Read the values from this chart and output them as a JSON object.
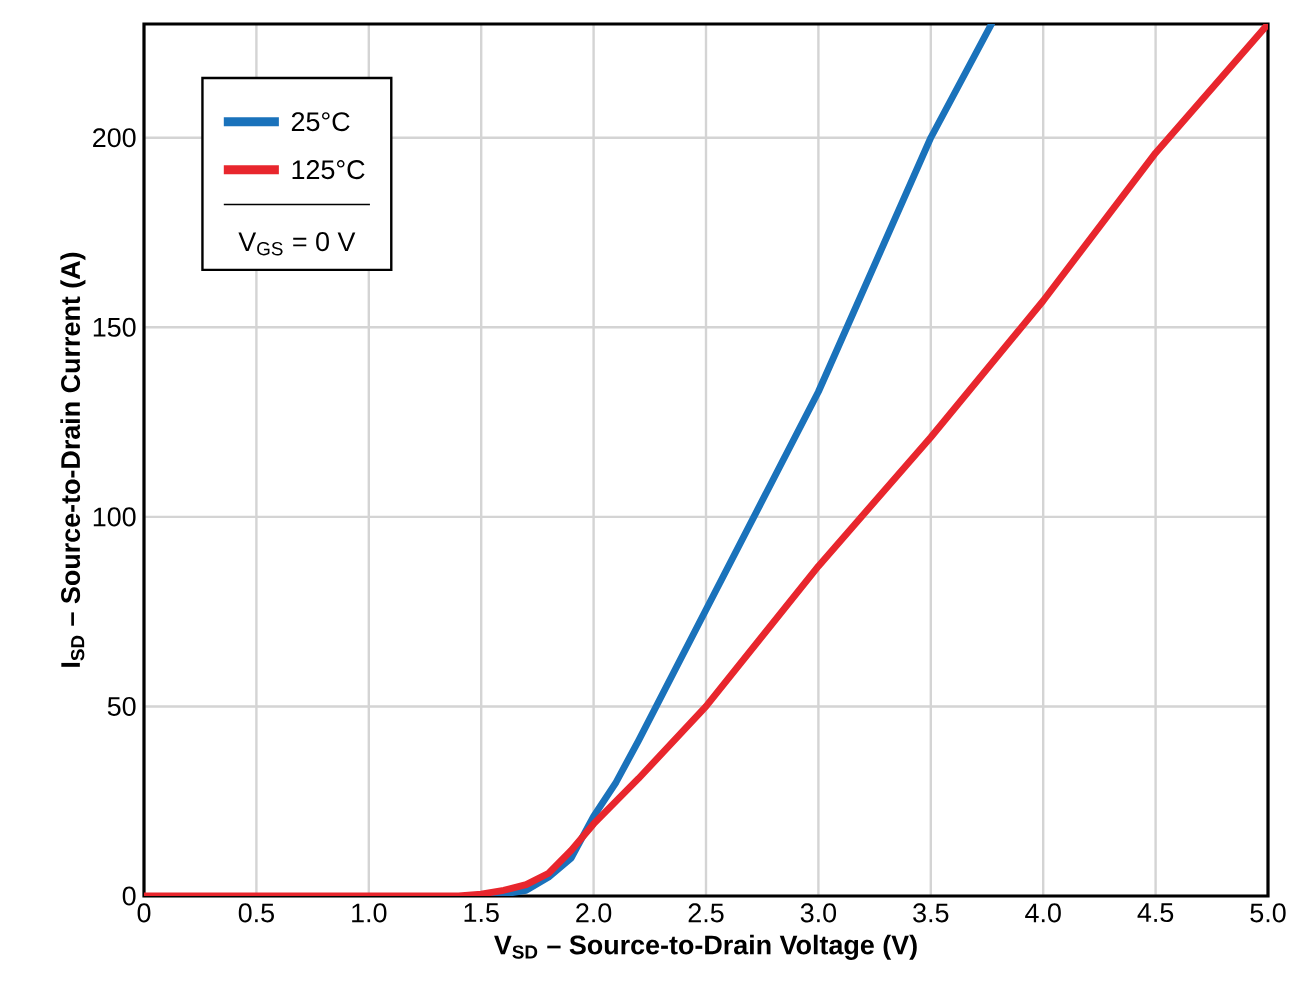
{
  "chart_data": {
    "type": "line",
    "xlabel": "V$_{SD}$ – Source-to-Drain Voltage (V)",
    "ylabel": "I$_{SD}$ – Source-to-Drain Current (A)",
    "series": [
      {
        "name": "25°C",
        "color": "#1a72bb",
        "x": [
          1.5,
          1.6,
          1.7,
          1.8,
          1.9,
          2.0,
          2.1,
          2.2,
          2.5,
          3.0,
          3.5,
          3.77
        ],
        "values": [
          0,
          0.5,
          1.5,
          5,
          10,
          21,
          30,
          41,
          75.5,
          133,
          200,
          230
        ]
      },
      {
        "name": "125°C",
        "color": "#e8262d",
        "x": [
          0,
          0.5,
          1.0,
          1.4,
          1.5,
          1.6,
          1.7,
          1.8,
          1.9,
          2.0,
          2.1,
          2.2,
          2.5,
          3.0,
          3.5,
          4.0,
          4.5,
          5.0
        ],
        "values": [
          0,
          0,
          0,
          0,
          0.5,
          1.5,
          3,
          6,
          12,
          19,
          25,
          31,
          50,
          87,
          121,
          157,
          196,
          230
        ]
      }
    ],
    "annotations": [
      "V$_{GS}$ = 0 V"
    ],
    "xlim": [
      0,
      5
    ],
    "ylim": [
      0,
      230
    ],
    "xticks": [
      0,
      0.5,
      {
        "value": 1,
        "label": "1.0"
      },
      1.5,
      {
        "value": 2,
        "label": "2.0"
      },
      2.5,
      {
        "value": 3,
        "label": "3.0"
      },
      3.5,
      {
        "value": 4,
        "label": "4.0"
      },
      4.5,
      {
        "value": 5,
        "label": "5.0"
      }
    ],
    "yticks": [
      0,
      50,
      100,
      150,
      200
    ],
    "grid": true,
    "legend": "top left",
    "line_style": "solid",
    "marker": "none"
  }
}
